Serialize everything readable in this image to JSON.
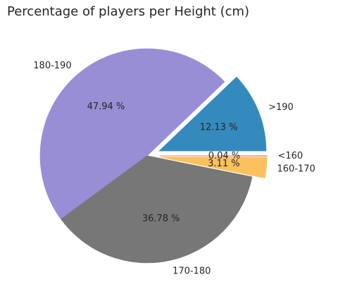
{
  "chart_data": {
    "type": "pie",
    "title": "Percentage of players per Height (cm)",
    "slices": [
      {
        "label": ">190",
        "value": 12.13,
        "pct_label": "12.13 %",
        "color": "#348abd",
        "exploded": true
      },
      {
        "label": "180-190",
        "value": 47.94,
        "pct_label": "47.94 %",
        "color": "#988ed5",
        "exploded": false
      },
      {
        "label": "170-180",
        "value": 36.78,
        "pct_label": "36.78 %",
        "color": "#777777",
        "exploded": false
      },
      {
        "label": "160-170",
        "value": 3.11,
        "pct_label": "3.11 %",
        "color": "#fbc15e",
        "exploded": true
      },
      {
        "label": "<160",
        "value": 0.04,
        "pct_label": "0.04 %",
        "color": "#e24a33",
        "exploded": true
      }
    ],
    "start_angle_deg": 0,
    "direction": "counterclockwise",
    "legend": "none"
  }
}
